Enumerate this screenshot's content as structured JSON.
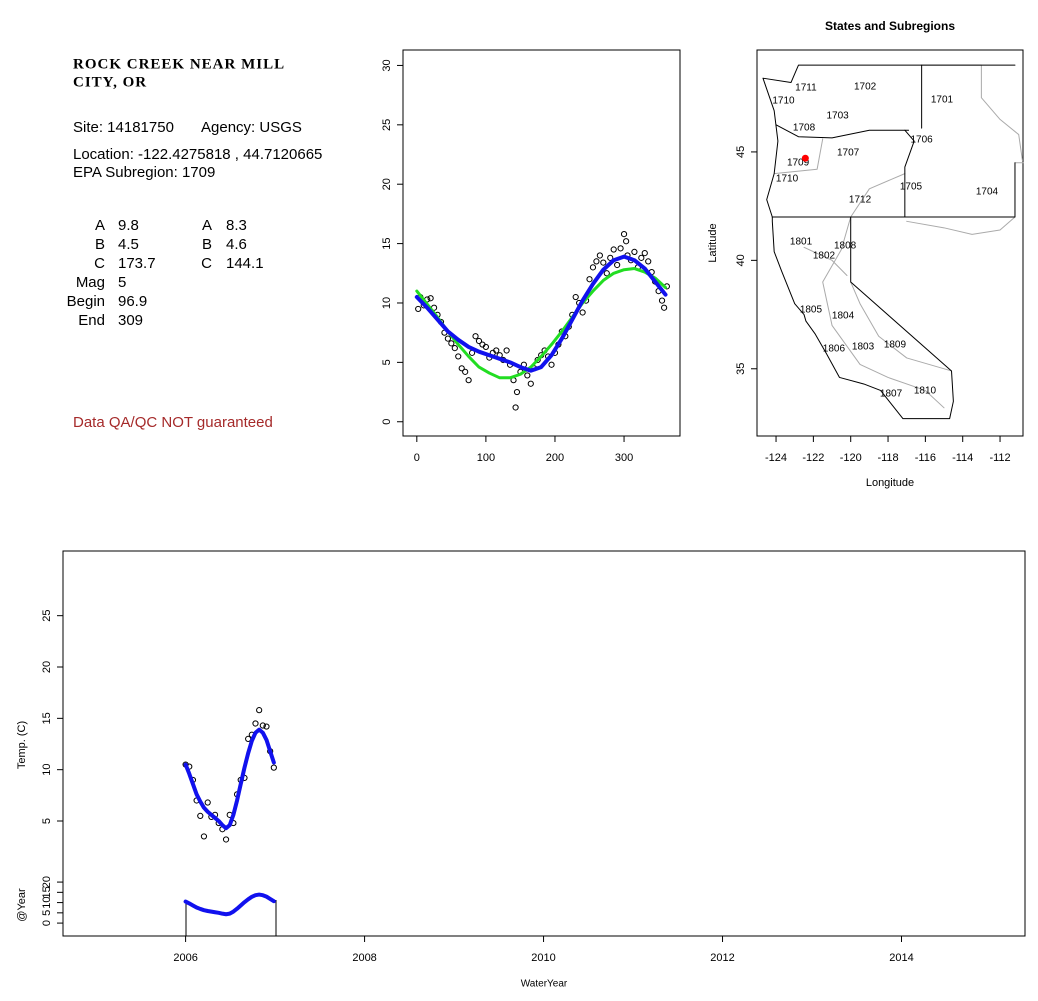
{
  "info": {
    "title_lines": [
      "ROCK CREEK NEAR MILL",
      "CITY, OR"
    ],
    "site": "Site: 14181750",
    "agency": "Agency: USGS",
    "location": "Location: -122.4275818 , 44.7120665",
    "subregion": "EPA Subregion: 1709",
    "params_col1": [
      {
        "label": "A",
        "value": 9.8
      },
      {
        "label": "B",
        "value": 4.5
      },
      {
        "label": "C",
        "value": 173.7
      },
      {
        "label": "Mag",
        "value": 5
      },
      {
        "label": "Begin",
        "value": 96.9
      },
      {
        "label": "End",
        "value": 309
      }
    ],
    "params_col2": [
      {
        "label": "A",
        "value": 8.3
      },
      {
        "label": "B",
        "value": 4.6
      },
      {
        "label": "C",
        "value": 144.1
      }
    ],
    "note": "Data QA/QC NOT guaranteed"
  },
  "chart_data": [
    {
      "type": "scatter",
      "x": [
        0,
        15,
        30,
        45,
        60,
        75,
        90,
        105,
        120,
        135,
        150,
        165,
        180,
        195,
        210,
        225,
        240,
        255,
        270,
        285,
        300,
        315,
        330,
        345,
        360
      ],
      "series": [
        {
          "color": "#22dd22",
          "values": [
            11.0,
            9.9,
            8.8,
            7.6,
            6.5,
            5.5,
            4.6,
            4.1,
            3.7,
            3.7,
            4.0,
            4.6,
            5.5,
            6.5,
            7.6,
            8.8,
            10.0,
            11.0,
            11.9,
            12.5,
            12.8,
            12.9,
            12.6,
            12.1,
            11.3
          ]
        },
        {
          "color": "#1111ee",
          "values": [
            10.5,
            9.6,
            8.6,
            7.6,
            6.9,
            6.3,
            5.9,
            5.6,
            5.3,
            5.0,
            4.6,
            4.3,
            4.6,
            5.6,
            7.0,
            8.6,
            10.2,
            11.6,
            12.8,
            13.6,
            13.9,
            13.6,
            12.9,
            11.8,
            10.7
          ]
        }
      ],
      "points": {
        "color": "#000000",
        "x": [
          2,
          5,
          10,
          15,
          20,
          25,
          30,
          35,
          40,
          45,
          50,
          55,
          60,
          65,
          70,
          75,
          80,
          85,
          90,
          95,
          100,
          105,
          110,
          115,
          120,
          125,
          130,
          135,
          140,
          143,
          145,
          150,
          155,
          160,
          165,
          170,
          175,
          180,
          185,
          190,
          195,
          200,
          205,
          210,
          215,
          220,
          225,
          230,
          235,
          240,
          245,
          250,
          255,
          260,
          265,
          270,
          275,
          280,
          285,
          290,
          295,
          300,
          303,
          305,
          310,
          315,
          320,
          325,
          330,
          335,
          340,
          345,
          350,
          355,
          358,
          362
        ],
        "values": [
          9.5,
          10.5,
          9.8,
          10.3,
          10.4,
          9.6,
          9,
          8.4,
          7.5,
          7,
          6.6,
          6.2,
          5.5,
          4.5,
          4.2,
          3.5,
          5.8,
          7.2,
          6.8,
          6.5,
          6.3,
          5.4,
          5.8,
          6,
          5.6,
          5.2,
          6,
          4.8,
          3.5,
          1.2,
          2.5,
          4.2,
          4.8,
          3.9,
          3.2,
          4.5,
          5.2,
          5.6,
          6,
          5.5,
          4.8,
          5.8,
          6.5,
          7.6,
          7.2,
          8,
          9,
          10.5,
          10,
          9.2,
          10.2,
          12,
          13,
          13.5,
          14,
          13.4,
          12.5,
          13.8,
          14.5,
          13.2,
          14.6,
          15.8,
          15.2,
          14,
          13.6,
          14.3,
          13,
          13.8,
          14.2,
          13.5,
          12.6,
          11.8,
          11,
          10.2,
          9.6,
          11.4
        ]
      },
      "xlim": [
        -20,
        381
      ],
      "xticks": [
        0,
        100,
        200,
        300
      ],
      "ylim": [
        -1.2,
        31.3
      ],
      "yticks": [
        0,
        5,
        10,
        15,
        20,
        25,
        30
      ]
    },
    {
      "type": "map",
      "title": "States and Subregions",
      "xlabel": "Longitude",
      "ylabel": "Latitude",
      "xlim": [
        -125.02,
        -110.77
      ],
      "xticks": [
        -124,
        -122,
        -120,
        -118,
        -116,
        -114,
        -112
      ],
      "ylim": [
        31.9,
        49.7
      ],
      "yticks": [
        35,
        40,
        45
      ],
      "regions": [
        {
          "label": "1702",
          "lon": -119.23,
          "lat": 48.0
        },
        {
          "label": "1701",
          "lon": -115.11,
          "lat": 47.4
        },
        {
          "label": "1711",
          "lon": -122.4,
          "lat": 47.95
        },
        {
          "label": "1710",
          "lon": -123.6,
          "lat": 47.35
        },
        {
          "label": "1703",
          "lon": -120.7,
          "lat": 46.66
        },
        {
          "label": "1708",
          "lon": -122.5,
          "lat": 46.1
        },
        {
          "label": "1706",
          "lon": -116.2,
          "lat": 45.55
        },
        {
          "label": "1707",
          "lon": -120.14,
          "lat": 44.95
        },
        {
          "label": "1709",
          "lon": -122.82,
          "lat": 44.49
        },
        {
          "label": "1710",
          "lon": -123.41,
          "lat": 43.76
        },
        {
          "label": "1705",
          "lon": -116.77,
          "lat": 43.39
        },
        {
          "label": "1704",
          "lon": -112.7,
          "lat": 43.16
        },
        {
          "label": "1712",
          "lon": -119.5,
          "lat": 42.79
        },
        {
          "label": "1801",
          "lon": -122.66,
          "lat": 40.85
        },
        {
          "label": "1808",
          "lon": -120.3,
          "lat": 40.67
        },
        {
          "label": "1802",
          "lon": -121.43,
          "lat": 40.2
        },
        {
          "label": "1805",
          "lon": -122.13,
          "lat": 37.72
        },
        {
          "label": "1804",
          "lon": -120.41,
          "lat": 37.44
        },
        {
          "label": "1806",
          "lon": -120.9,
          "lat": 35.92
        },
        {
          "label": "1803",
          "lon": -119.34,
          "lat": 36.01
        },
        {
          "label": "1809",
          "lon": -117.63,
          "lat": 36.1
        },
        {
          "label": "1807",
          "lon": -117.84,
          "lat": 33.85
        },
        {
          "label": "1810",
          "lon": -116.02,
          "lat": 33.99
        }
      ],
      "site": {
        "lon": -122.43,
        "lat": 44.71,
        "color": "#ff0000"
      }
    },
    {
      "type": "line",
      "xlabel": "WaterYear",
      "ylabel": "Temp. (C)",
      "y2label": "@Year",
      "x": [
        2006,
        2006.041,
        2006.082,
        2006.123,
        2006.164,
        2006.205,
        2006.247,
        2006.288,
        2006.329,
        2006.37,
        2006.411,
        2006.452,
        2006.493,
        2006.534,
        2006.575,
        2006.616,
        2006.658,
        2006.699,
        2006.74,
        2006.781,
        2006.822,
        2006.863,
        2006.904,
        2006.945,
        2006.986
      ],
      "series": [
        {
          "mode": "points",
          "color": "#000000",
          "values": [
            10.5,
            10.3,
            9,
            7,
            5.5,
            3.5,
            6.8,
            5.4,
            5.6,
            4.8,
            4.2,
            3.2,
            5.6,
            4.8,
            7.6,
            9,
            9.2,
            13,
            13.4,
            14.5,
            15.8,
            14.3,
            14.2,
            11.8,
            10.2
          ]
        },
        {
          "mode": "line",
          "color": "#1111ee",
          "values": [
            10.5,
            9.6,
            8.6,
            7.6,
            6.9,
            6.3,
            5.9,
            5.6,
            5.3,
            5.0,
            4.6,
            4.3,
            4.6,
            5.6,
            7.0,
            8.6,
            10.2,
            11.6,
            12.8,
            13.6,
            13.9,
            13.6,
            12.9,
            11.8,
            10.7
          ]
        },
        {
          "mode": "line",
          "axis": "y2",
          "color": "#1111ee",
          "values": [
            10.5,
            9.6,
            8.6,
            7.6,
            6.9,
            6.3,
            5.9,
            5.6,
            5.3,
            5.0,
            4.6,
            4.3,
            4.6,
            5.6,
            7.0,
            8.6,
            10.2,
            11.6,
            12.8,
            13.6,
            13.9,
            13.6,
            12.9,
            11.8,
            10.7
          ]
        }
      ],
      "xlim": [
        2004.63,
        2015.38
      ],
      "xticks": [
        2006,
        2008,
        2010,
        2012,
        2014
      ],
      "ylim": [
        -6.2,
        31.3
      ],
      "yticks": [
        5,
        10,
        15,
        20,
        25
      ],
      "y2lim": [
        -6.3,
        181.5
      ],
      "y2ticks": [
        0,
        5,
        10,
        15,
        20
      ]
    }
  ]
}
